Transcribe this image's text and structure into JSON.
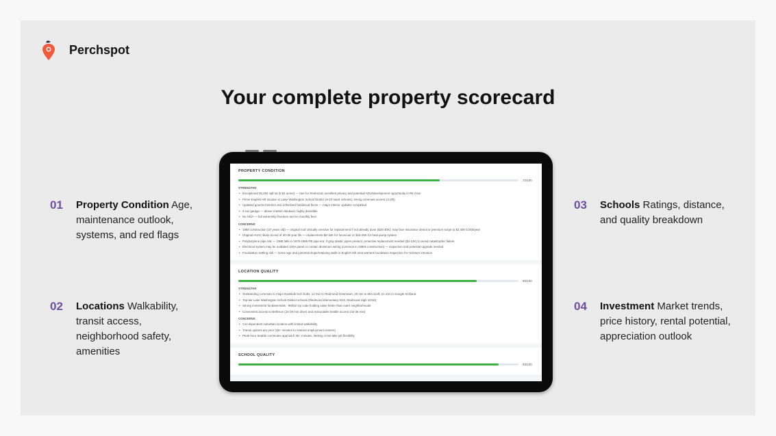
{
  "brand": {
    "name": "Perchspot",
    "accent": "#f05a3a"
  },
  "headline": "Your complete property scorecard",
  "features": [
    {
      "num": "01",
      "title": "Property Condition",
      "desc": "Age, maintenance outlook, systems, and red flags"
    },
    {
      "num": "02",
      "title": "Locations",
      "desc": "Walkability, transit access, neighborhood safety, amenities"
    },
    {
      "num": "03",
      "title": "Schools",
      "desc": "Ratings, distance, and quality breakdown"
    },
    {
      "num": "04",
      "title": "Investment",
      "desc": "Market trends, price history, rental potential, appreciation outlook"
    }
  ],
  "scorecard": [
    {
      "title": "PROPERTY CONDITION",
      "score": 72,
      "score_label": "72/100",
      "strengths_label": "STRENGTHS",
      "strengths": [
        "Exceptional 35,284 sqft lot (0.81 acres) — rare for Redmond, excellent privacy and potential ADU/development opportunity in R5 zone",
        "Prime English Hill location in Lake Washington School District (9-10 rated schools), strong commute access (4.0/5)",
        "Updated gourmet kitchen and refinished hardwood floors — major interior updates completed",
        "3-car garage — above market standard, highly desirable",
        "No HOA — full ownership freedom and no monthly fees"
      ],
      "concerns_label": "CONCERNS",
      "concerns": [
        "1988 construction (37 years old) — original roof critically overdue for replacement if not already done ($20-30K); may face insurance denial or premium surge to $2,400-3,000/year",
        "Original HVAC likely at end of 30-35 year life — replacement $8-15K for forced air or $15-25K for heat pump system",
        "Polybutylene pipe risk — 1988 falls in 1978-1995 PB pipe era; if gray plastic pipes present, proactive replacement needed ($4-12K) to avoid catastrophic failure",
        "Electrical system may be outdated 100A panel or contain aluminum wiring (common in 1980s construction) — inspection and potential upgrade needed",
        "Foundation settling risk — home age and potential slope/retaining walls in English Hill area warrant foundation inspection for moisture intrusion"
      ]
    },
    {
      "title": "LOCATION QUALITY",
      "score": 85,
      "score_label": "85/100",
      "strengths_label": "STRENGTHS",
      "strengths": [
        "Outstanding commute to major Eastside tech hubs: 12 min to Redmond Downtown, 20 min to Microsoft, 21 min to Google Kirkland",
        "Top-tier Lake Washington School District schools (Redmond Elementary 9/10, Redmond High 10/10)",
        "Strong investment fundamentals - 98052 zip code holding value better than outer neighborhoods",
        "Convenient access to Bellevue (24-29 min drive) and reasonable Seattle access (32-36 min)"
      ],
      "concerns_label": "CONCERNS",
      "concerns": [
        "Car-dependent suburban location with limited walkability",
        "Transit options are poor (45+ minutes to nearest employment centers)",
        "Peak-hour Seattle commutes approach 35+ minutes, limiting cross-lake job flexibility"
      ]
    },
    {
      "title": "SCHOOL QUALITY",
      "score": 93,
      "score_label": "93/100"
    }
  ]
}
